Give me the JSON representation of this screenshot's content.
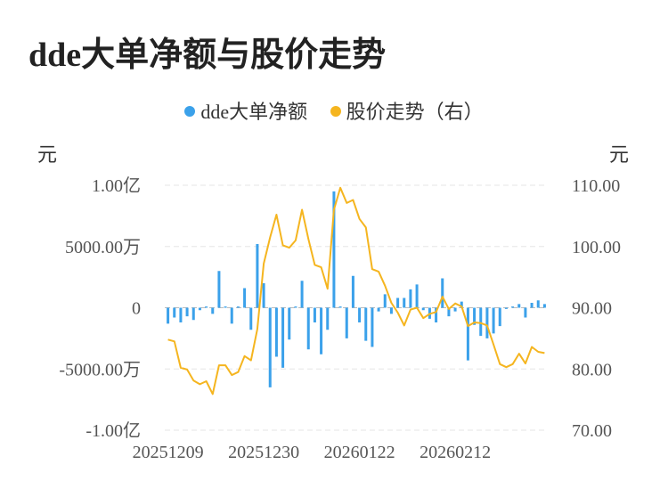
{
  "title": "dde大单净额与股价走势",
  "legend": {
    "series1": "dde大单净额",
    "series2": "股价走势（右）"
  },
  "units": {
    "left": "元",
    "right": "元"
  },
  "colors": {
    "bar": "#3ba1ea",
    "line": "#f5b51f",
    "grid": "#e6e6e6",
    "baseline": "#bbbbbb"
  },
  "chart_data": {
    "type": "bar+line",
    "x_ticks": [
      "20251209",
      "20251230",
      "20260122",
      "20260212"
    ],
    "left_axis": {
      "ticks": [
        "1.00亿",
        "5000.00万",
        "0",
        "-5000.00万",
        "-1.00亿"
      ],
      "ylim": [
        -10000,
        10000
      ],
      "unit": "万元"
    },
    "right_axis": {
      "ticks": [
        "110.00",
        "100.00",
        "90.00",
        "80.00",
        "70.00"
      ],
      "ylim": [
        70,
        110
      ]
    },
    "grid": true,
    "series": [
      {
        "name": "dde大单净额",
        "type": "bar",
        "axis": "left",
        "values": [
          -1300,
          -800,
          -1200,
          -700,
          -1000,
          -200,
          100,
          -500,
          3000,
          100,
          -1300,
          100,
          1600,
          -1800,
          5200,
          2000,
          -6500,
          -4000,
          -4900,
          -2600,
          100,
          2200,
          -3400,
          -1200,
          -3800,
          -1800,
          9500,
          100,
          -2500,
          2600,
          -1200,
          -2700,
          -3200,
          -300,
          1100,
          -500,
          800,
          800,
          1500,
          1900,
          -200,
          -900,
          -1200,
          2400,
          -700,
          -300,
          500,
          -4300,
          -1400,
          -2300,
          -2500,
          -2100,
          -1500,
          -100,
          100,
          300,
          -800,
          400,
          600,
          300
        ]
      },
      {
        "name": "股价走势（右）",
        "type": "line",
        "axis": "right",
        "values": [
          84.8,
          84.5,
          80.2,
          79.9,
          78.1,
          77.5,
          78.0,
          75.9,
          80.6,
          80.6,
          79.0,
          79.5,
          82.1,
          81.4,
          86.5,
          97.2,
          101.5,
          105.2,
          100.2,
          99.8,
          101.0,
          106.0,
          101.2,
          97.0,
          96.6,
          93.1,
          106.0,
          109.6,
          107.1,
          107.6,
          104.5,
          103.1,
          96.3,
          95.9,
          93.6,
          90.8,
          89.2,
          87.1,
          89.7,
          90.0,
          88.3,
          89.0,
          89.3,
          91.8,
          89.8,
          90.7,
          90.2,
          87.0,
          87.6,
          87.5,
          87.1,
          84.0,
          80.8,
          80.3,
          80.8,
          82.5,
          80.9,
          83.6,
          82.8,
          82.6
        ]
      }
    ]
  }
}
